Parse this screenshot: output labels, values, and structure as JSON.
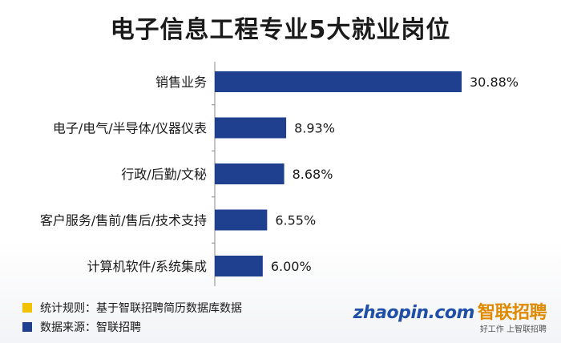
{
  "title": "电子信息工程专业5大就业岗位",
  "chart_data": {
    "type": "bar",
    "orientation": "horizontal",
    "categories": [
      "销售业务",
      "电子/电气/半导体/仪器仪表",
      "行政/后勤/文秘",
      "客户服务/售前/售后/技术支持",
      "计算机软件/系统集成"
    ],
    "values": [
      30.88,
      8.93,
      8.68,
      6.55,
      6.0
    ],
    "value_labels": [
      "30.88%",
      "8.93%",
      "8.68%",
      "6.55%",
      "6.00%"
    ],
    "xlim": [
      0,
      30.88
    ],
    "grid": false,
    "legend_position": "bottom-left",
    "bar_color": "#1f3f8f"
  },
  "legend": [
    {
      "color": "#f2c200",
      "label": "统计规则：基于智联招聘简历数据库数据"
    },
    {
      "color": "#1f3f8f",
      "label": "数据来源：智联招聘"
    }
  ],
  "logo": {
    "brand": "zhaopin.com",
    "brand_cn": "智联招聘",
    "slogan": "好工作  上智联招聘"
  }
}
